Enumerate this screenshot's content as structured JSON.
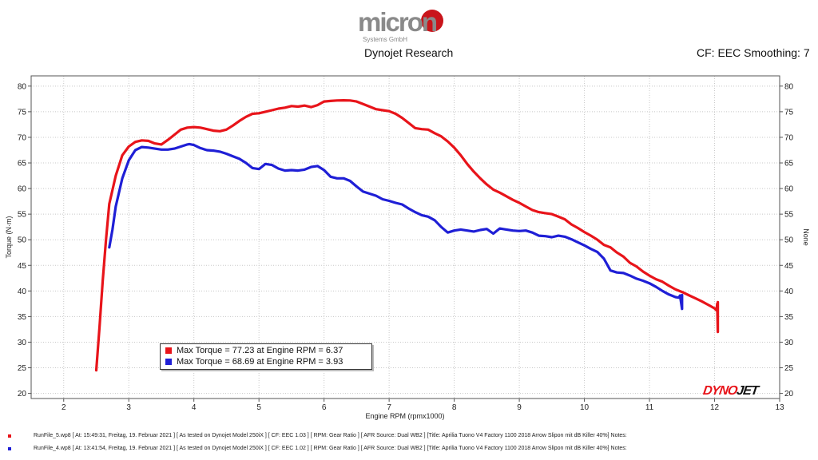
{
  "header": {
    "logo_text": "micron",
    "logo_sub": "Systems GmbH",
    "title": "Dynojet Research",
    "cf_label": "CF: EEC Smoothing: 7"
  },
  "brand": {
    "dynojet_a": "DYNO",
    "dynojet_b": "JET"
  },
  "colors": {
    "red": "#e8141a",
    "blue": "#1f1fd6",
    "grid": "#c8c8c8"
  },
  "legend": [
    {
      "text": "Max Torque = 77.23 at Engine RPM = 6.37",
      "color": "#e8141a"
    },
    {
      "text": "Max Torque = 68.69 at Engine RPM = 3.93",
      "color": "#1f1fd6"
    }
  ],
  "footer": [
    {
      "text": "RunFile_5.wp8  [ At:  15:49:31, Freitag, 19. Februar  2021 ]  [ As tested on Dynojet Model 250iX ]  [ CF:  EEC 1.03 ]  [ RPM:  Gear Ratio ]  [ AFR Source:  Dual WB2 ]  [Title:  Aprilia Tuono V4 Factory 1100 2018 Arrow Slipon mit dB Killer 40%]   Notes:",
      "color": "#e8141a"
    },
    {
      "text": "RunFile_4.wp8  [ At:  13:41:54, Freitag, 19. Februar  2021 ]  [ As tested on Dynojet Model 250iX ]  [ CF:  EEC 1.02 ]  [ RPM:  Gear Ratio ]  [ AFR Source:  Dual WB2 ]  [Title:  Aprilia Tuono V4 Factory 1100 2018 Arrow Slipon mit dB Killer 40%]   Notes:",
      "color": "#1f1fd6"
    }
  ],
  "chart_data": {
    "type": "line",
    "title": "Dynojet Research",
    "xlabel": "Engine RPM (rpmx1000)",
    "ylabel": "Torque (N·m)",
    "ylabel_right": "None",
    "xlim": [
      1.5,
      13
    ],
    "ylim": [
      19,
      82
    ],
    "xticks": [
      2,
      3,
      4,
      5,
      6,
      7,
      8,
      9,
      10,
      11,
      12,
      13
    ],
    "yticks": [
      20,
      25,
      30,
      35,
      40,
      45,
      50,
      55,
      60,
      65,
      70,
      75,
      80
    ],
    "grid": true,
    "series": [
      {
        "name": "RunFile_5",
        "color": "#e8141a",
        "x": [
          2.5,
          2.55,
          2.6,
          2.65,
          2.7,
          2.8,
          2.9,
          3.0,
          3.1,
          3.2,
          3.3,
          3.4,
          3.5,
          3.6,
          3.7,
          3.8,
          3.9,
          4.0,
          4.1,
          4.2,
          4.3,
          4.4,
          4.5,
          4.6,
          4.7,
          4.8,
          4.9,
          5.0,
          5.1,
          5.2,
          5.3,
          5.4,
          5.5,
          5.6,
          5.7,
          5.8,
          5.9,
          6.0,
          6.1,
          6.2,
          6.3,
          6.4,
          6.5,
          6.6,
          6.7,
          6.8,
          6.9,
          7.0,
          7.1,
          7.2,
          7.3,
          7.4,
          7.5,
          7.6,
          7.7,
          7.8,
          7.9,
          8.0,
          8.1,
          8.2,
          8.3,
          8.4,
          8.5,
          8.6,
          8.7,
          8.8,
          8.9,
          9.0,
          9.1,
          9.2,
          9.3,
          9.4,
          9.5,
          9.6,
          9.7,
          9.8,
          9.9,
          10.0,
          10.1,
          10.2,
          10.3,
          10.4,
          10.5,
          10.6,
          10.7,
          10.8,
          10.9,
          11.0,
          11.1,
          11.2,
          11.3,
          11.4,
          11.5,
          11.6,
          11.7,
          11.8,
          11.9,
          12.0,
          12.03,
          12.04,
          12.05,
          12.05
        ],
        "values": [
          24.5,
          33,
          42,
          50,
          57,
          62.5,
          66.5,
          68.2,
          69.1,
          69.4,
          69.3,
          68.8,
          68.6,
          69.5,
          70.5,
          71.5,
          71.9,
          72.0,
          71.9,
          71.6,
          71.3,
          71.2,
          71.5,
          72.3,
          73.2,
          74.0,
          74.6,
          74.7,
          75.0,
          75.3,
          75.6,
          75.8,
          76.1,
          76.0,
          76.2,
          75.9,
          76.3,
          77.0,
          77.1,
          77.2,
          77.23,
          77.2,
          77.0,
          76.5,
          76.0,
          75.5,
          75.3,
          75.1,
          74.6,
          73.8,
          72.8,
          71.8,
          71.6,
          71.5,
          70.8,
          70.2,
          69.2,
          68.0,
          66.5,
          64.8,
          63.3,
          62.0,
          60.8,
          59.8,
          59.2,
          58.5,
          57.8,
          57.2,
          56.5,
          55.8,
          55.4,
          55.2,
          55.0,
          54.5,
          54.0,
          53.0,
          52.3,
          51.5,
          50.8,
          50.0,
          49.0,
          48.5,
          47.5,
          46.7,
          45.5,
          44.8,
          43.8,
          43.0,
          42.3,
          41.8,
          41.0,
          40.3,
          39.8,
          39.2,
          38.6,
          38.0,
          37.3,
          36.6,
          36.2,
          37.5,
          32.0,
          37.8
        ]
      },
      {
        "name": "RunFile_4",
        "color": "#1f1fd6",
        "x": [
          2.7,
          2.75,
          2.8,
          2.9,
          3.0,
          3.1,
          3.2,
          3.3,
          3.4,
          3.5,
          3.6,
          3.7,
          3.8,
          3.9,
          3.93,
          4.0,
          4.1,
          4.2,
          4.3,
          4.4,
          4.5,
          4.6,
          4.7,
          4.8,
          4.9,
          5.0,
          5.1,
          5.2,
          5.3,
          5.4,
          5.5,
          5.6,
          5.7,
          5.8,
          5.9,
          6.0,
          6.1,
          6.2,
          6.3,
          6.4,
          6.5,
          6.6,
          6.7,
          6.8,
          6.9,
          7.0,
          7.1,
          7.2,
          7.3,
          7.4,
          7.5,
          7.6,
          7.7,
          7.8,
          7.9,
          8.0,
          8.1,
          8.2,
          8.3,
          8.4,
          8.5,
          8.6,
          8.7,
          8.8,
          8.9,
          9.0,
          9.1,
          9.2,
          9.3,
          9.4,
          9.5,
          9.6,
          9.7,
          9.8,
          9.9,
          10.0,
          10.1,
          10.2,
          10.3,
          10.4,
          10.5,
          10.6,
          10.7,
          10.8,
          10.9,
          11.0,
          11.1,
          11.2,
          11.3,
          11.4,
          11.45,
          11.47,
          11.5,
          11.5
        ],
        "values": [
          48.5,
          52,
          56.5,
          62,
          65.5,
          67.5,
          68.1,
          68.0,
          67.8,
          67.6,
          67.6,
          67.8,
          68.2,
          68.6,
          68.69,
          68.5,
          67.9,
          67.5,
          67.4,
          67.2,
          66.8,
          66.3,
          65.8,
          65.0,
          64.0,
          63.8,
          64.8,
          64.6,
          63.9,
          63.5,
          63.6,
          63.5,
          63.7,
          64.2,
          64.4,
          63.6,
          62.3,
          62.0,
          62.0,
          61.5,
          60.4,
          59.4,
          59.0,
          58.6,
          57.9,
          57.6,
          57.2,
          56.9,
          56.1,
          55.4,
          54.8,
          54.5,
          53.8,
          52.5,
          51.4,
          51.8,
          52.0,
          51.8,
          51.6,
          51.9,
          52.1,
          51.2,
          52.2,
          52.0,
          51.8,
          51.7,
          51.8,
          51.4,
          50.8,
          50.7,
          50.5,
          50.8,
          50.6,
          50.1,
          49.5,
          48.9,
          48.2,
          47.6,
          46.3,
          44.0,
          43.6,
          43.5,
          43.0,
          42.4,
          42.0,
          41.5,
          40.8,
          40.0,
          39.3,
          38.8,
          38.7,
          39.1,
          36.5,
          39.2
        ]
      }
    ]
  }
}
